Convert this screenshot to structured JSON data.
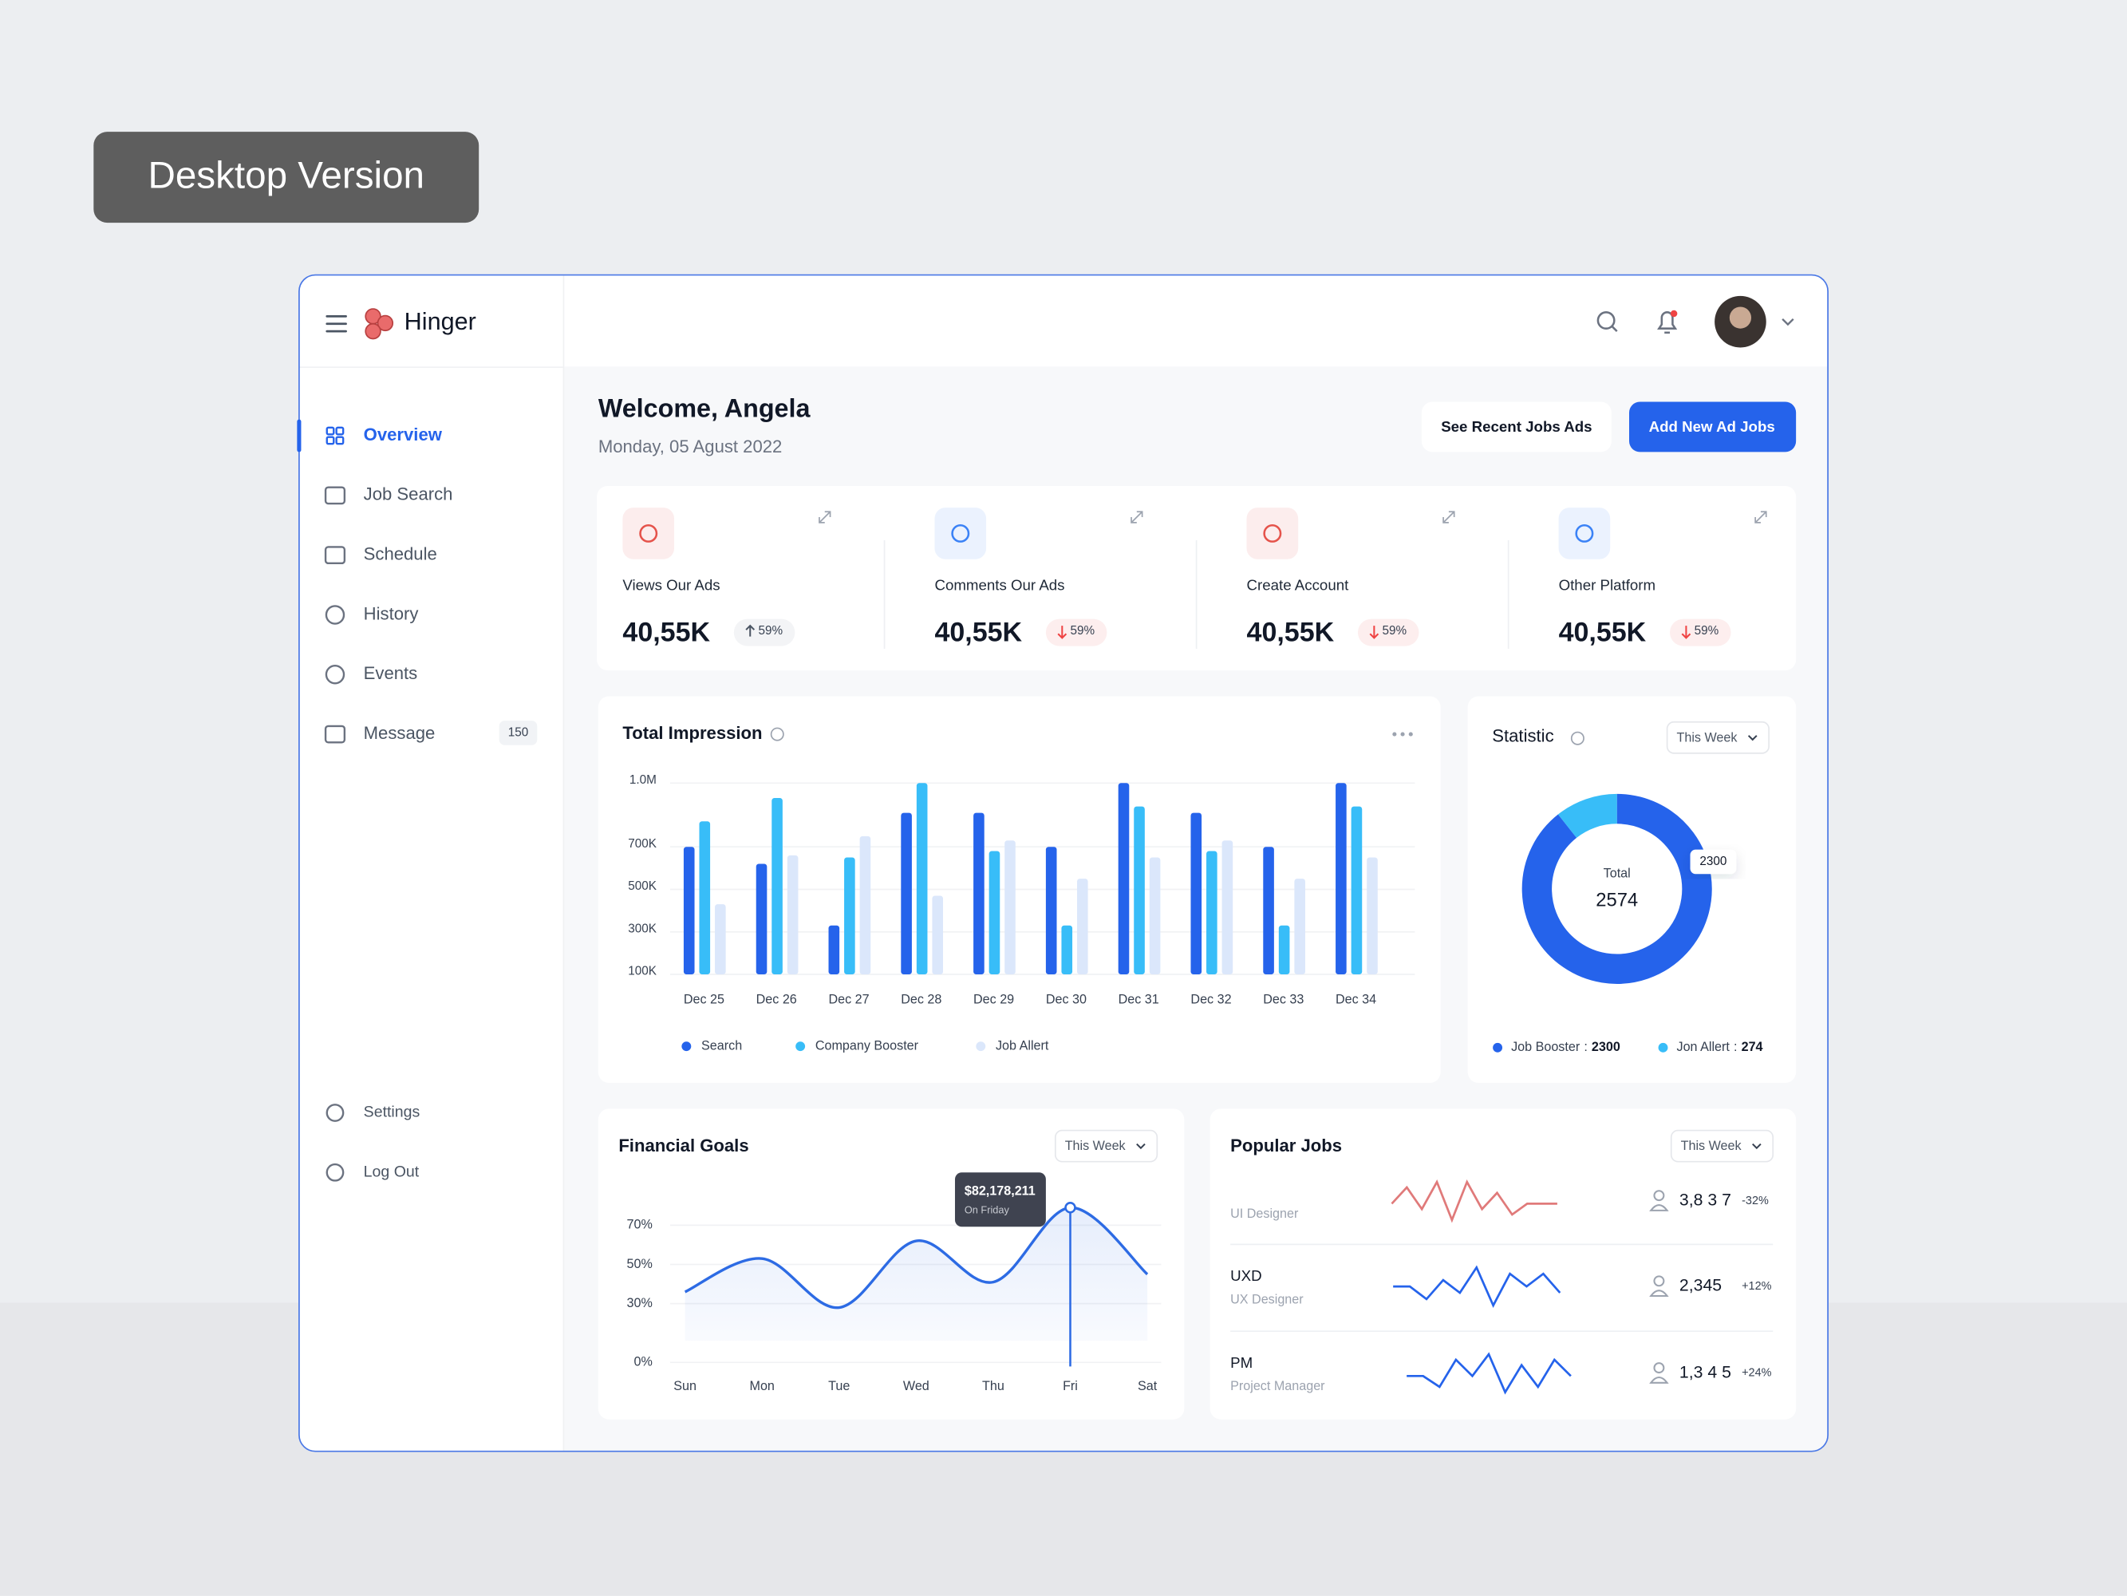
{
  "badge": "Desktop Version",
  "brand": "Hinger",
  "nav": {
    "items": [
      "Overview",
      "Job Search",
      "Schedule",
      "History",
      "Events",
      "Message"
    ],
    "message_count": 150,
    "bottom": [
      "Settings",
      "Log Out"
    ]
  },
  "header": {
    "title": "Welcome, Angela",
    "date": "Monday, 05 Agust 2022",
    "buttons": [
      "See Recent Jobs Ads",
      "Add New Ad Jobs"
    ]
  },
  "stats": [
    {
      "label": "Views Our Ads",
      "value": "40,55K",
      "change": "59%",
      "direction": "up",
      "color": "#e5534b"
    },
    {
      "label": "Comments Our Ads",
      "value": "40,55K",
      "change": "59%",
      "direction": "down",
      "color": "#3b82f6"
    },
    {
      "label": "Create Account",
      "value": "40,55K",
      "change": "59%",
      "direction": "down",
      "color": "#e5534b"
    },
    {
      "label": "Other Platform",
      "value": "40,55K",
      "change": "59%",
      "direction": "down",
      "color": "#3b82f6"
    }
  ],
  "chart_data": [
    {
      "type": "bar",
      "title": "Total Impression",
      "categories": [
        "Dec 25",
        "Dec 26",
        "Dec 27",
        "Dec 28",
        "Dec 29",
        "Dec 30",
        "Dec 31",
        "Dec 32",
        "Dec 33",
        "Dec 34"
      ],
      "series": [
        {
          "name": "Search",
          "color": "#2563eb",
          "values": [
            700000,
            620000,
            330000,
            860000,
            860000,
            700000,
            1000000,
            860000,
            700000,
            1000000
          ]
        },
        {
          "name": "Company Booster",
          "color": "#38bdf8",
          "values": [
            820000,
            930000,
            650000,
            1000000,
            680000,
            330000,
            890000,
            680000,
            330000,
            890000
          ]
        },
        {
          "name": "Job Allert",
          "color": "#dbe7fb",
          "values": [
            430000,
            660000,
            750000,
            470000,
            730000,
            550000,
            650000,
            730000,
            550000,
            650000
          ]
        }
      ],
      "ylim": [
        100000,
        1000000
      ],
      "yticks": [
        {
          "value": 1000000,
          "label": "1.0M"
        },
        {
          "value": 700000,
          "label": "700K"
        },
        {
          "value": 500000,
          "label": "500K"
        },
        {
          "value": 300000,
          "label": "300K"
        },
        {
          "value": 100000,
          "label": "100K"
        }
      ],
      "grid": true
    },
    {
      "type": "donut",
      "title": "Statistic",
      "period": "This Week",
      "center_label": "Total",
      "total": 2574,
      "categories": [
        "Job Booster",
        "Jon Allert"
      ],
      "values": [
        2300,
        274
      ],
      "colors": [
        "#2563eb",
        "#38bdf8"
      ],
      "legend_separator": ":"
    },
    {
      "type": "line",
      "title": "Financial Goals",
      "period": "This Week",
      "categories": [
        "Sun",
        "Mon",
        "Tue",
        "Wed",
        "Thu",
        "Fri",
        "Sat"
      ],
      "values": [
        36,
        53,
        28,
        62,
        41,
        79,
        45
      ],
      "color": "#2d6be4",
      "ylim": [
        0,
        90
      ],
      "yticks": [
        {
          "value": 70,
          "label": "70%"
        },
        {
          "value": 50,
          "label": "50%"
        },
        {
          "value": 30,
          "label": "30%"
        },
        {
          "value": 0,
          "label": "0%"
        }
      ],
      "grid": true,
      "highlight": {
        "index": 5,
        "label": "$82,178,211",
        "sublabel": "On Friday"
      }
    }
  ],
  "popular_jobs": {
    "title": "Popular Jobs",
    "period": "This Week",
    "rows": [
      {
        "subtitle": "UI Designer",
        "count": "3,8 3 7",
        "change": "-32%",
        "color": "#e07a7a",
        "trend": [
          5,
          8,
          4,
          9,
          2,
          9,
          4,
          7,
          3,
          5,
          5,
          5
        ]
      },
      {
        "title": "UXD",
        "subtitle": "UX Designer",
        "count": "2,345",
        "change": "+12%",
        "color": "#2563eb",
        "trend": [
          5,
          5,
          3,
          6,
          4,
          8,
          2,
          7,
          5,
          7,
          4
        ]
      },
      {
        "title": "PM",
        "subtitle": "Project Manager",
        "count": "1,3 4 5",
        "change": "+24%",
        "color": "#2563eb",
        "trend": [
          5,
          5,
          3,
          8,
          5,
          9,
          2,
          7,
          3,
          8,
          5
        ]
      }
    ]
  }
}
